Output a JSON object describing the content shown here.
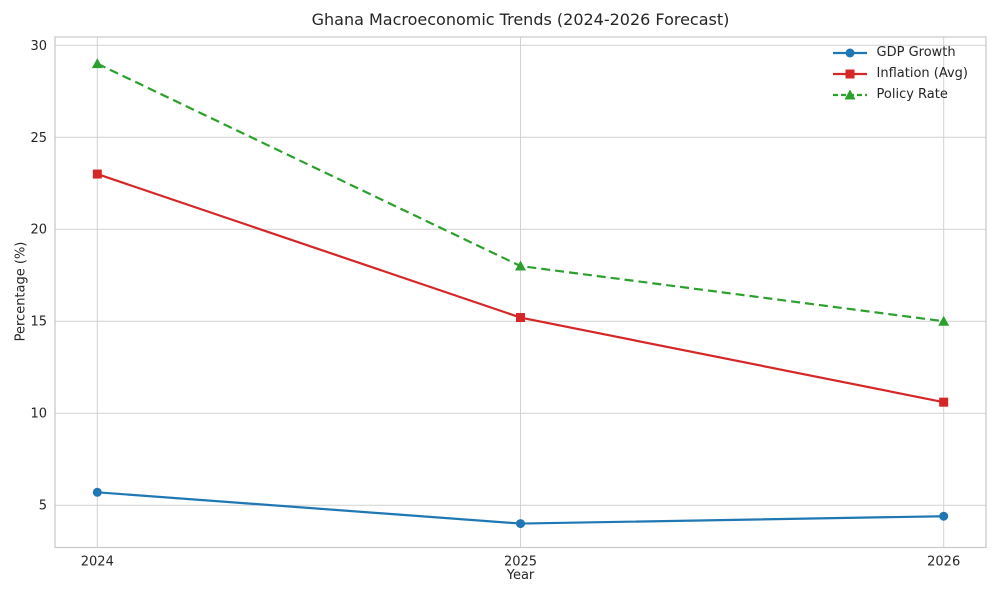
{
  "chart_data": {
    "type": "line",
    "title": "Ghana Macroeconomic Trends (2024-2026 Forecast)",
    "xlabel": "Year",
    "ylabel": "Percentage (%)",
    "x": [
      2024,
      2025,
      2026
    ],
    "xtick_labels": [
      "2024",
      "2025",
      "2026"
    ],
    "ytick_values": [
      5,
      10,
      15,
      20,
      25,
      30
    ],
    "ytick_labels": [
      "5",
      "10",
      "15",
      "20",
      "25",
      "30"
    ],
    "xlim": [
      2023.9,
      2026.1
    ],
    "ylim": [
      2.7,
      30.45
    ],
    "grid": true,
    "legend_position": "upper right",
    "background_color": "#ffffff",
    "grid_color": "#d2d2d2",
    "spine_color": "#c8c8c8",
    "series": [
      {
        "name": "GDP Growth",
        "values": [
          5.7,
          4.0,
          4.4
        ],
        "color": "#1f77b4",
        "marker": "circle",
        "line_style": "solid"
      },
      {
        "name": "Inflation (Avg)",
        "values": [
          23.0,
          15.2,
          10.6
        ],
        "color": "#d62728",
        "marker": "square",
        "line_style": "solid"
      },
      {
        "name": "Policy Rate",
        "values": [
          29.0,
          18.0,
          15.0
        ],
        "color": "#2ca02c",
        "marker": "triangle",
        "line_style": "dashed"
      }
    ]
  }
}
